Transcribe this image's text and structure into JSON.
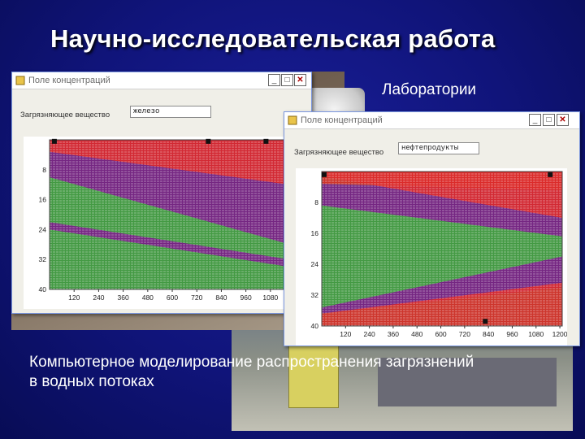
{
  "slide": {
    "title": "Научно-исследовательская работа",
    "lab_label": "Лаборатории",
    "caption": "Компьютерное моделирование распространения загрязнений в водных потоках"
  },
  "colors": {
    "red": "#dd2a2a",
    "purple": "#7b1a8a",
    "green": "#2f8f2f",
    "accent": "#10147a"
  },
  "windows": [
    {
      "title": "Поле концентраций",
      "field_label": "Загрязняющее вещество",
      "field_value": "железо",
      "x_ticks": [
        "120",
        "240",
        "360",
        "480",
        "600",
        "720",
        "840",
        "960",
        "1080"
      ],
      "y_ticks": [
        "8",
        "16",
        "24",
        "32",
        "40"
      ],
      "buttons": [
        "_",
        "□",
        "✕"
      ]
    },
    {
      "title": "Поле концентраций",
      "field_label": "Загрязняющее вещество",
      "field_value": "нефтепродукты",
      "x_ticks": [
        "120",
        "240",
        "360",
        "480",
        "600",
        "720",
        "840",
        "960",
        "1080",
        "1200"
      ],
      "y_ticks": [
        "8",
        "16",
        "24",
        "32",
        "40"
      ],
      "buttons": [
        "_",
        "□",
        "✕"
      ]
    }
  ]
}
